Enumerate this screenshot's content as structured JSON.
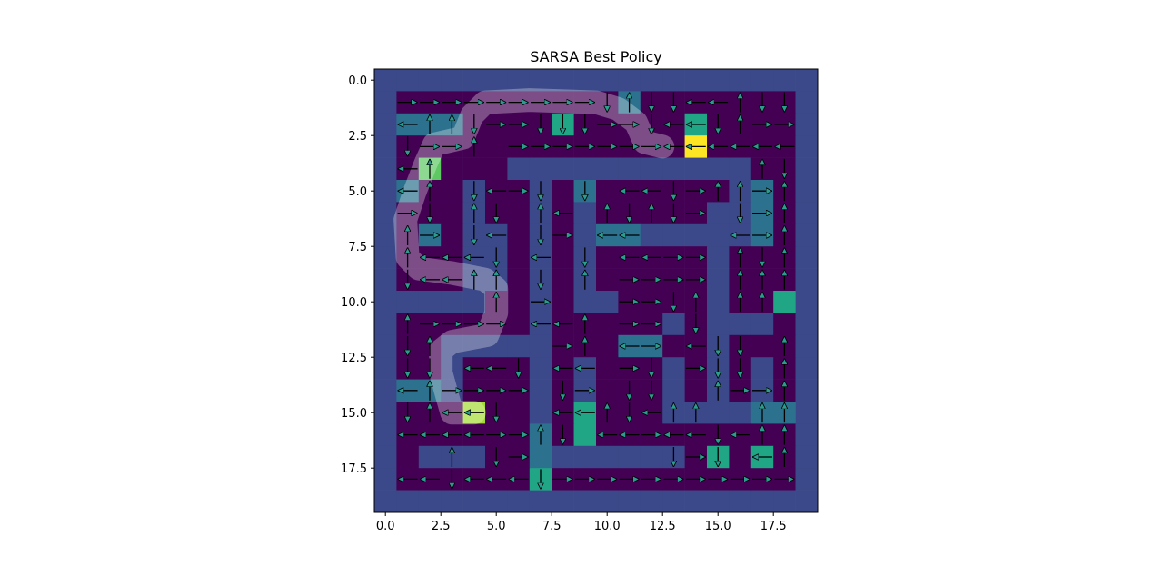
{
  "chart_data": {
    "type": "heatmap",
    "title": "SARSA Best Policy",
    "xlabel": "",
    "ylabel": "",
    "grid_size": 20,
    "xlim": [
      -0.5,
      19.5
    ],
    "ylim": [
      19.5,
      -0.5
    ],
    "xticks": [
      0.0,
      2.5,
      5.0,
      7.5,
      10.0,
      12.5,
      15.0,
      17.5
    ],
    "xtick_labels": [
      "0.0",
      "2.5",
      "5.0",
      "7.5",
      "10.0",
      "12.5",
      "15.0",
      "17.5"
    ],
    "yticks": [
      0.0,
      2.5,
      5.0,
      7.5,
      10.0,
      12.5,
      15.0,
      17.5
    ],
    "ytick_labels": [
      "0.0",
      "2.5",
      "5.0",
      "7.5",
      "10.0",
      "12.5",
      "15.0",
      "17.5"
    ],
    "colormap": "viridis",
    "cell_values_legend": {
      "0": "open",
      "1": "wall",
      "2": "low value",
      "3": "mid value",
      "4": "high value",
      "5": "start",
      "6": "goal"
    },
    "grid": [
      "11111111111111111111",
      "10000000000200000001",
      "12220000300000300001",
      "10000000000000600001",
      "10400011111111111001",
      "12001001020000001201",
      "10001001010000011201",
      "10201101012211111201",
      "10001101010000010001",
      "10001101010000010001",
      "11111001011000010031",
      "10000001000001011101",
      "10011111000220010001",
      "10010001010001010101",
      "12210001010001010101",
      "10005001030001111221",
      "10000002030000000001",
      "10111002111111030301",
      "10000003000000000001",
      "11111111111111111111"
    ],
    "colors": {
      "0": "#440154",
      "1": "#3b4889",
      "2": "#2c728e",
      "3": "#21a685",
      "4": "#5ec962",
      "5": "#a5db36",
      "6": "#fde725"
    },
    "arrows": [
      [
        1,
        1,
        "R"
      ],
      [
        2,
        1,
        "R"
      ],
      [
        3,
        1,
        "R"
      ],
      [
        4,
        1,
        "R"
      ],
      [
        5,
        1,
        "R"
      ],
      [
        6,
        1,
        "R"
      ],
      [
        7,
        1,
        "R"
      ],
      [
        8,
        1,
        "R"
      ],
      [
        9,
        1,
        "R"
      ],
      [
        10,
        1,
        "D"
      ],
      [
        11,
        1,
        "U"
      ],
      [
        12,
        1,
        "D"
      ],
      [
        13,
        1,
        "D"
      ],
      [
        14,
        1,
        "L"
      ],
      [
        15,
        1,
        "L"
      ],
      [
        16,
        1,
        "U"
      ],
      [
        17,
        1,
        "D"
      ],
      [
        18,
        1,
        "D"
      ],
      [
        1,
        2,
        "L"
      ],
      [
        2,
        2,
        "U"
      ],
      [
        3,
        2,
        "U"
      ],
      [
        4,
        2,
        "D"
      ],
      [
        5,
        2,
        "R"
      ],
      [
        6,
        2,
        "R"
      ],
      [
        7,
        2,
        "D"
      ],
      [
        8,
        2,
        "D"
      ],
      [
        9,
        2,
        "D"
      ],
      [
        10,
        2,
        "R"
      ],
      [
        11,
        2,
        "R"
      ],
      [
        12,
        2,
        "D"
      ],
      [
        13,
        2,
        "L"
      ],
      [
        14,
        2,
        "L"
      ],
      [
        15,
        2,
        "D"
      ],
      [
        16,
        2,
        "U"
      ],
      [
        17,
        2,
        "R"
      ],
      [
        18,
        2,
        "R"
      ],
      [
        1,
        3,
        "D"
      ],
      [
        2,
        3,
        "R"
      ],
      [
        3,
        3,
        "R"
      ],
      [
        4,
        3,
        "U"
      ],
      [
        6,
        3,
        "R"
      ],
      [
        7,
        3,
        "R"
      ],
      [
        8,
        3,
        "R"
      ],
      [
        9,
        3,
        "R"
      ],
      [
        10,
        3,
        "R"
      ],
      [
        11,
        3,
        "R"
      ],
      [
        12,
        3,
        "R"
      ],
      [
        13,
        3,
        "L"
      ],
      [
        14,
        3,
        "L"
      ],
      [
        15,
        3,
        "L"
      ],
      [
        16,
        3,
        "L"
      ],
      [
        17,
        3,
        "L"
      ],
      [
        18,
        3,
        "L"
      ],
      [
        1,
        4,
        "L"
      ],
      [
        2,
        4,
        "U"
      ],
      [
        17,
        4,
        "U"
      ],
      [
        18,
        4,
        "D"
      ],
      [
        1,
        5,
        "L"
      ],
      [
        2,
        5,
        "U"
      ],
      [
        4,
        5,
        "D"
      ],
      [
        5,
        5,
        "L"
      ],
      [
        6,
        5,
        "R"
      ],
      [
        7,
        5,
        "D"
      ],
      [
        9,
        5,
        "D"
      ],
      [
        11,
        5,
        "L"
      ],
      [
        12,
        5,
        "L"
      ],
      [
        13,
        5,
        "D"
      ],
      [
        14,
        5,
        "R"
      ],
      [
        15,
        5,
        "U"
      ],
      [
        16,
        5,
        "U"
      ],
      [
        17,
        5,
        "R"
      ],
      [
        18,
        5,
        "U"
      ],
      [
        1,
        6,
        "R"
      ],
      [
        2,
        6,
        "D"
      ],
      [
        4,
        6,
        "U"
      ],
      [
        5,
        6,
        "D"
      ],
      [
        7,
        6,
        "U"
      ],
      [
        8,
        6,
        "L"
      ],
      [
        10,
        6,
        "U"
      ],
      [
        11,
        6,
        "D"
      ],
      [
        12,
        6,
        "U"
      ],
      [
        13,
        6,
        "D"
      ],
      [
        14,
        6,
        "R"
      ],
      [
        16,
        6,
        "D"
      ],
      [
        17,
        6,
        "R"
      ],
      [
        18,
        6,
        "U"
      ],
      [
        1,
        7,
        "U"
      ],
      [
        2,
        7,
        "R"
      ],
      [
        4,
        7,
        "D"
      ],
      [
        5,
        7,
        "L"
      ],
      [
        7,
        7,
        "D"
      ],
      [
        8,
        7,
        "R"
      ],
      [
        10,
        7,
        "L"
      ],
      [
        11,
        7,
        "L"
      ],
      [
        16,
        7,
        "L"
      ],
      [
        17,
        7,
        "R"
      ],
      [
        18,
        7,
        "U"
      ],
      [
        1,
        8,
        "U"
      ],
      [
        2,
        8,
        "L"
      ],
      [
        3,
        8,
        "L"
      ],
      [
        4,
        8,
        "L"
      ],
      [
        5,
        8,
        "D"
      ],
      [
        7,
        8,
        "L"
      ],
      [
        9,
        8,
        "D"
      ],
      [
        11,
        8,
        "L"
      ],
      [
        12,
        8,
        "L"
      ],
      [
        13,
        8,
        "R"
      ],
      [
        14,
        8,
        "R"
      ],
      [
        16,
        8,
        "U"
      ],
      [
        17,
        8,
        "D"
      ],
      [
        18,
        8,
        "U"
      ],
      [
        1,
        9,
        "D"
      ],
      [
        2,
        9,
        "L"
      ],
      [
        3,
        9,
        "L"
      ],
      [
        4,
        9,
        "U"
      ],
      [
        5,
        9,
        "U"
      ],
      [
        7,
        9,
        "D"
      ],
      [
        9,
        9,
        "U"
      ],
      [
        11,
        9,
        "R"
      ],
      [
        12,
        9,
        "R"
      ],
      [
        13,
        9,
        "R"
      ],
      [
        14,
        9,
        "R"
      ],
      [
        16,
        9,
        "U"
      ],
      [
        17,
        9,
        "U"
      ],
      [
        18,
        9,
        "U"
      ],
      [
        5,
        10,
        "U"
      ],
      [
        7,
        10,
        "R"
      ],
      [
        11,
        10,
        "R"
      ],
      [
        12,
        10,
        "R"
      ],
      [
        13,
        10,
        "D"
      ],
      [
        14,
        10,
        "U"
      ],
      [
        16,
        10,
        "U"
      ],
      [
        17,
        10,
        "U"
      ],
      [
        1,
        11,
        "U"
      ],
      [
        2,
        11,
        "R"
      ],
      [
        3,
        11,
        "R"
      ],
      [
        4,
        11,
        "R"
      ],
      [
        5,
        11,
        "R"
      ],
      [
        7,
        11,
        "L"
      ],
      [
        8,
        11,
        "L"
      ],
      [
        9,
        11,
        "U"
      ],
      [
        11,
        11,
        "R"
      ],
      [
        12,
        11,
        "R"
      ],
      [
        14,
        11,
        "D"
      ],
      [
        1,
        12,
        "D"
      ],
      [
        2,
        12,
        "U"
      ],
      [
        8,
        12,
        "R"
      ],
      [
        9,
        12,
        "U"
      ],
      [
        11,
        12,
        "L"
      ],
      [
        12,
        12,
        "R"
      ],
      [
        14,
        12,
        "L"
      ],
      [
        15,
        12,
        "D"
      ],
      [
        16,
        12,
        "D"
      ],
      [
        18,
        12,
        "U"
      ],
      [
        1,
        13,
        "D"
      ],
      [
        2,
        13,
        "D"
      ],
      [
        4,
        13,
        "L"
      ],
      [
        5,
        13,
        "L"
      ],
      [
        6,
        13,
        "D"
      ],
      [
        8,
        13,
        "L"
      ],
      [
        9,
        13,
        "L"
      ],
      [
        11,
        13,
        "R"
      ],
      [
        12,
        13,
        "D"
      ],
      [
        14,
        13,
        "R"
      ],
      [
        15,
        13,
        "D"
      ],
      [
        16,
        13,
        "D"
      ],
      [
        18,
        13,
        "U"
      ],
      [
        1,
        14,
        "L"
      ],
      [
        2,
        14,
        "U"
      ],
      [
        3,
        14,
        "R"
      ],
      [
        4,
        14,
        "R"
      ],
      [
        5,
        14,
        "R"
      ],
      [
        6,
        14,
        "R"
      ],
      [
        8,
        14,
        "D"
      ],
      [
        9,
        14,
        "R"
      ],
      [
        11,
        14,
        "D"
      ],
      [
        12,
        14,
        "D"
      ],
      [
        15,
        14,
        "U"
      ],
      [
        16,
        14,
        "R"
      ],
      [
        17,
        14,
        "R"
      ],
      [
        18,
        14,
        "U"
      ],
      [
        1,
        15,
        "D"
      ],
      [
        2,
        15,
        "U"
      ],
      [
        3,
        15,
        "L"
      ],
      [
        4,
        15,
        "L"
      ],
      [
        5,
        15,
        "D"
      ],
      [
        8,
        15,
        "L"
      ],
      [
        9,
        15,
        "L"
      ],
      [
        10,
        15,
        "U"
      ],
      [
        11,
        15,
        "D"
      ],
      [
        12,
        15,
        "L"
      ],
      [
        13,
        15,
        "U"
      ],
      [
        14,
        15,
        "U"
      ],
      [
        17,
        15,
        "U"
      ],
      [
        18,
        15,
        "U"
      ],
      [
        1,
        16,
        "L"
      ],
      [
        2,
        16,
        "L"
      ],
      [
        3,
        16,
        "L"
      ],
      [
        4,
        16,
        "L"
      ],
      [
        5,
        16,
        "R"
      ],
      [
        6,
        16,
        "R"
      ],
      [
        7,
        16,
        "U"
      ],
      [
        8,
        16,
        "D"
      ],
      [
        10,
        16,
        "L"
      ],
      [
        11,
        16,
        "L"
      ],
      [
        12,
        16,
        "R"
      ],
      [
        13,
        16,
        "L"
      ],
      [
        14,
        16,
        "L"
      ],
      [
        15,
        16,
        "D"
      ],
      [
        16,
        16,
        "L"
      ],
      [
        17,
        16,
        "U"
      ],
      [
        18,
        16,
        "U"
      ],
      [
        3,
        17,
        "U"
      ],
      [
        5,
        17,
        "D"
      ],
      [
        6,
        17,
        "R"
      ],
      [
        13,
        17,
        "D"
      ],
      [
        14,
        17,
        "R"
      ],
      [
        15,
        17,
        "D"
      ],
      [
        17,
        17,
        "L"
      ],
      [
        18,
        17,
        "U"
      ],
      [
        1,
        18,
        "L"
      ],
      [
        2,
        18,
        "L"
      ],
      [
        3,
        18,
        "D"
      ],
      [
        4,
        18,
        "L"
      ],
      [
        5,
        18,
        "L"
      ],
      [
        6,
        18,
        "L"
      ],
      [
        7,
        18,
        "D"
      ],
      [
        8,
        18,
        "R"
      ],
      [
        9,
        18,
        "R"
      ],
      [
        10,
        18,
        "R"
      ],
      [
        11,
        18,
        "R"
      ],
      [
        12,
        18,
        "R"
      ],
      [
        13,
        18,
        "R"
      ],
      [
        14,
        18,
        "R"
      ],
      [
        15,
        18,
        "R"
      ],
      [
        16,
        18,
        "R"
      ],
      [
        17,
        18,
        "R"
      ],
      [
        18,
        18,
        "R"
      ]
    ],
    "best_path": [
      [
        4,
        15
      ],
      [
        3,
        15
      ],
      [
        2.8,
        14.3
      ],
      [
        2.5,
        13.2
      ],
      [
        2.5,
        12.2
      ],
      [
        3,
        11.8
      ],
      [
        4.6,
        11.5
      ],
      [
        5,
        10.5
      ],
      [
        5,
        9.4
      ],
      [
        4.5,
        9.0
      ],
      [
        3,
        8.7
      ],
      [
        1.5,
        8.5
      ],
      [
        1,
        8
      ],
      [
        0.9,
        6.3
      ],
      [
        1.3,
        5.1
      ],
      [
        1.8,
        3.8
      ],
      [
        2.2,
        2.9
      ],
      [
        3.5,
        2.6
      ],
      [
        3.9,
        1.6
      ],
      [
        4.5,
        1.0
      ],
      [
        6.5,
        0.9
      ],
      [
        9.5,
        1.0
      ],
      [
        10.5,
        1.3
      ],
      [
        11.3,
        1.9
      ],
      [
        11.7,
        2.8
      ],
      [
        12.5,
        3.0
      ]
    ]
  }
}
